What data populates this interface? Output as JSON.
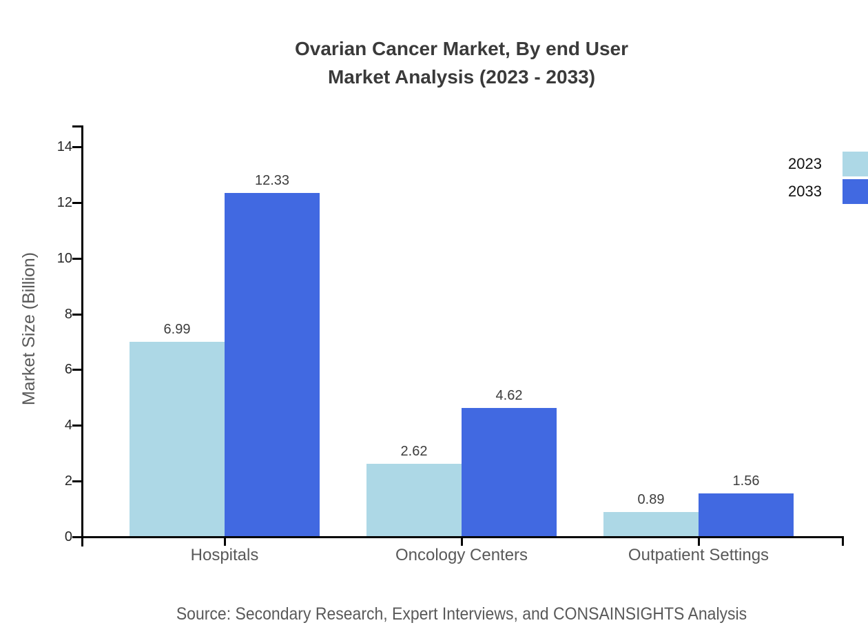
{
  "title": {
    "line1": "Ovarian Cancer Market, By end User",
    "line2": "Market Analysis (2023 - 2033)"
  },
  "source": {
    "text": "Source: Secondary Research, Expert Interviews, and CONSAINSIGHTS Analysis"
  },
  "chart_data": {
    "type": "bar",
    "title": "Ovarian Cancer Market, By end User Market Analysis (2023 - 2033)",
    "categories": [
      "Hospitals",
      "Oncology Centers",
      "Outpatient Settings"
    ],
    "series": [
      {
        "name": "2023",
        "color": "#ADD8E6",
        "values": [
          6.99,
          2.62,
          0.89
        ]
      },
      {
        "name": "2033",
        "color": "#4169E1",
        "values": [
          12.33,
          4.62,
          1.56
        ]
      }
    ],
    "xlabel": "",
    "ylabel": "Market Size (Billion)",
    "yticks": [
      0,
      2,
      4,
      6,
      8,
      10,
      12,
      14
    ],
    "ylim": [
      0,
      14.75
    ],
    "grid": false,
    "legend_position": "top-right",
    "value_label_decimals": 2,
    "axis_color": "#000000",
    "background_color": "#ffffff"
  }
}
